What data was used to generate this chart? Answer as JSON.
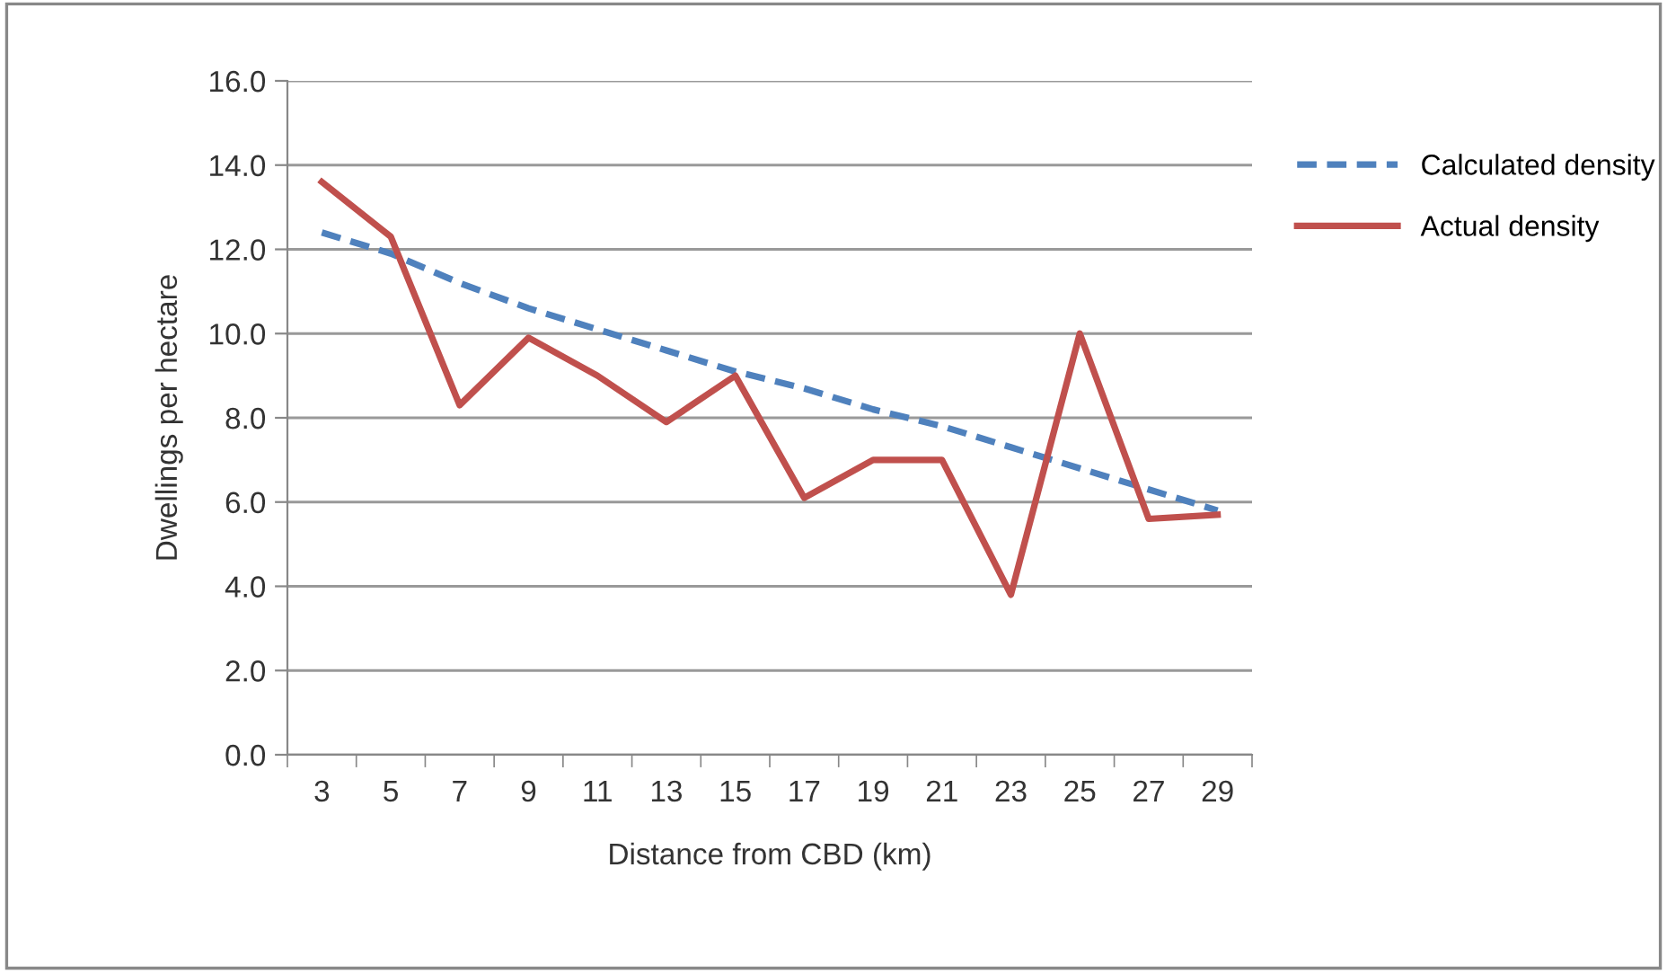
{
  "chart_data": {
    "type": "line",
    "xlabel": "Distance from CBD (km)",
    "ylabel": "Dwellings per hectare",
    "categories": [
      "3",
      "5",
      "7",
      "9",
      "11",
      "13",
      "15",
      "17",
      "19",
      "21",
      "23",
      "25",
      "27",
      "29"
    ],
    "series": [
      {
        "name": "Calculated density",
        "color": "#4f81bd",
        "line_style": "dashed",
        "values": [
          12.4,
          11.9,
          11.2,
          10.6,
          10.1,
          9.6,
          9.1,
          8.7,
          8.2,
          7.8,
          7.3,
          6.8,
          6.3,
          5.8
        ]
      },
      {
        "name": "Actual density",
        "color": "#c0504d",
        "line_style": "solid",
        "values": [
          13.6,
          12.3,
          8.3,
          9.9,
          9.0,
          7.9,
          9.0,
          6.1,
          7.0,
          7.0,
          3.8,
          10.0,
          5.6,
          5.7
        ]
      }
    ],
    "ylim": [
      0,
      16
    ],
    "yticks": [
      {
        "value": 0,
        "label": "0.0"
      },
      {
        "value": 2,
        "label": "2.0"
      },
      {
        "value": 4,
        "label": "4.0"
      },
      {
        "value": 6,
        "label": "6.0"
      },
      {
        "value": 8,
        "label": "8.0"
      },
      {
        "value": 10,
        "label": "10.0"
      },
      {
        "value": 12,
        "label": "12.0"
      },
      {
        "value": 14,
        "label": "14.0"
      },
      {
        "value": 16,
        "label": "16.0"
      }
    ],
    "grid": "y",
    "legend": "right",
    "marker": "none"
  }
}
